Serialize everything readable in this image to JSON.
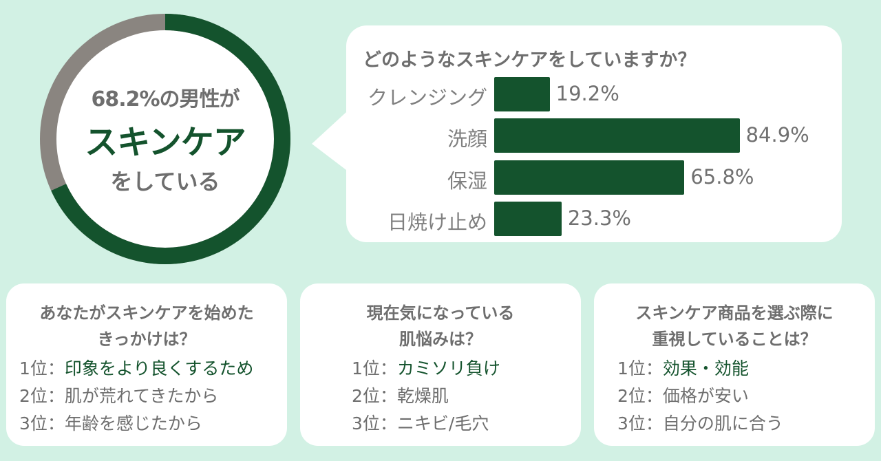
{
  "colors": {
    "accent": "#14532d",
    "muted": "#8a8580",
    "background": "#d2f1e4",
    "card": "#ffffff"
  },
  "donut": {
    "percent": 68.2,
    "line1": "68.2%の男性が",
    "line2": "スキンケア",
    "line3": "をしている"
  },
  "chart_data": {
    "type": "bar",
    "title": "どのようなスキンケアをしていますか？",
    "categories": [
      "クレンジング",
      "洗顔",
      "保湿",
      "日焼け止め"
    ],
    "values": [
      19.2,
      84.9,
      65.8,
      23.3
    ],
    "value_labels": [
      "19.2%",
      "84.9%",
      "65.8%",
      "23.3%"
    ],
    "ylim": [
      0,
      100
    ],
    "orientation": "horizontal",
    "grid": false
  },
  "panels": [
    {
      "question_lines": [
        "あなたがスキンケアを始めた",
        "きっかけは？"
      ],
      "ranks": [
        {
          "prefix": "1位：",
          "text": "印象をより良くするため",
          "highlight": true
        },
        {
          "prefix": "2位：",
          "text": "肌が荒れてきたから",
          "highlight": false
        },
        {
          "prefix": "3位：",
          "text": "年齢を感じたから",
          "highlight": false
        }
      ]
    },
    {
      "question_lines": [
        "現在気になっている",
        "肌悩みは？"
      ],
      "ranks": [
        {
          "prefix": "1位：",
          "text": "カミソリ負け",
          "highlight": true
        },
        {
          "prefix": "2位：",
          "text": "乾燥肌",
          "highlight": false
        },
        {
          "prefix": "3位：",
          "text": "ニキビ/毛穴",
          "highlight": false
        }
      ]
    },
    {
      "question_lines": [
        "スキンケア商品を選ぶ際に",
        "重視していることは？"
      ],
      "ranks": [
        {
          "prefix": "1位：",
          "text": "効果・効能",
          "highlight": true
        },
        {
          "prefix": "2位：",
          "text": "価格が安い",
          "highlight": false
        },
        {
          "prefix": "3位：",
          "text": "自分の肌に合う",
          "highlight": false
        }
      ]
    }
  ]
}
